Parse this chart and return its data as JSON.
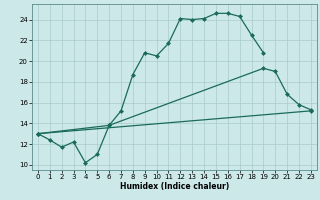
{
  "xlabel": "Humidex (Indice chaleur)",
  "background_color": "#cce8e8",
  "grid_color": "#aacccc",
  "line_color": "#1a6b5a",
  "xlim": [
    -0.5,
    23.5
  ],
  "ylim": [
    9.5,
    25.5
  ],
  "xticks": [
    0,
    1,
    2,
    3,
    4,
    5,
    6,
    7,
    8,
    9,
    10,
    11,
    12,
    13,
    14,
    15,
    16,
    17,
    18,
    19,
    20,
    21,
    22,
    23
  ],
  "yticks": [
    10,
    12,
    14,
    16,
    18,
    20,
    22,
    24
  ],
  "series1_x": [
    0,
    1,
    2,
    3,
    4,
    5,
    6,
    7,
    8,
    9,
    10,
    11,
    12,
    13,
    14,
    15,
    16,
    17,
    18,
    19,
    20,
    21,
    22,
    23
  ],
  "series1_y": [
    13.0,
    12.4,
    11.7,
    12.2,
    10.2,
    11.0,
    13.8,
    15.2,
    18.7,
    20.8,
    20.5,
    21.7,
    24.1,
    24.0,
    24.1,
    24.6,
    24.6,
    24.3,
    22.5,
    20.8,
    null,
    null,
    null,
    null
  ],
  "series2_x": [
    0,
    6,
    19,
    20,
    21,
    22,
    23
  ],
  "series2_y": [
    13.0,
    13.8,
    19.3,
    19.0,
    16.8,
    15.8,
    15.3
  ],
  "series3_x": [
    0,
    23
  ],
  "series3_y": [
    13.0,
    15.2
  ]
}
